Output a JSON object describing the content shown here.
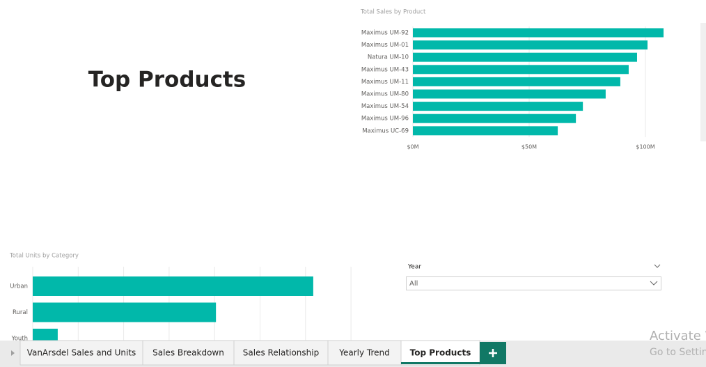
{
  "page_title": "Top Products",
  "charts": [
    {
      "type": "hbar",
      "title": "Total Sales by Product",
      "color": "#01b8aa",
      "categories": [
        "Maximus UM-92",
        "Maximus UM-01",
        "Natura UM-10",
        "Maximus UM-43",
        "Maximus UM-11",
        "Maximus UM-80",
        "Maximus UM-54",
        "Maximus UM-96",
        "Maximus UC-69"
      ],
      "values": [
        107.8,
        100.9,
        96.4,
        92.8,
        89.2,
        82.9,
        73.1,
        70.1,
        62.3
      ],
      "xlim": [
        0,
        110
      ],
      "xticks": [
        {
          "value": 0,
          "label": "$0M"
        },
        {
          "value": 50,
          "label": "$50M"
        },
        {
          "value": 100,
          "label": "$100M"
        }
      ],
      "grid": true
    },
    {
      "type": "hbar",
      "title": "Total Units by Category",
      "color": "#01b8aa",
      "categories": [
        "Urban",
        "Rural",
        "Youth"
      ],
      "values": [
        6.17,
        4.03,
        0.55
      ],
      "xlim": [
        0,
        7
      ],
      "xticks": [
        0,
        1,
        2,
        3,
        4,
        5,
        6,
        7
      ],
      "grid": true
    }
  ],
  "slicer": {
    "label": "Year",
    "value": "All"
  },
  "tabs": [
    "VanArsdel Sales and Units",
    "Sales Breakdown",
    "Sales Relationship",
    "Yearly Trend",
    "Top Products"
  ],
  "active_tab": 4,
  "watermark": [
    "Activate W",
    "Go to Settin"
  ]
}
